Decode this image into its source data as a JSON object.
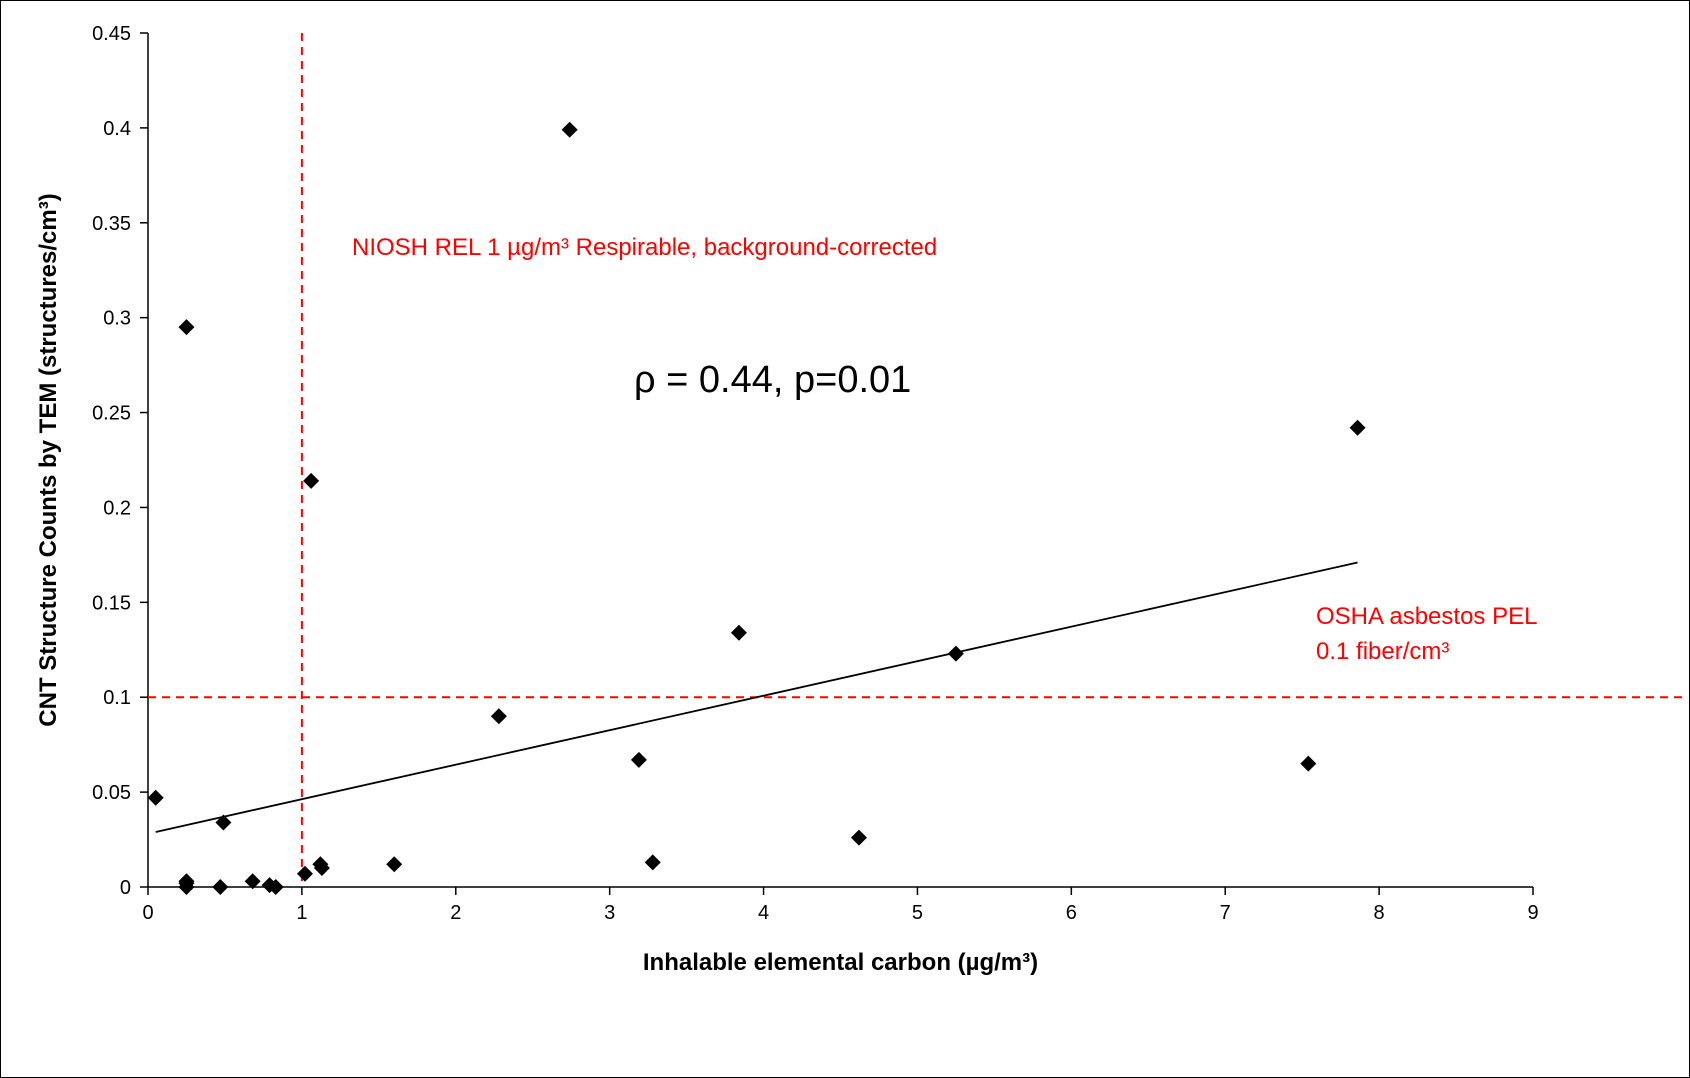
{
  "chart_data": {
    "type": "scatter",
    "xlabel": "Inhalable elemental carbon (µg/m³)",
    "ylabel": "CNT Structure Counts by TEM (structures/cm³)",
    "xlim": [
      0,
      9
    ],
    "ylim": [
      0,
      0.45
    ],
    "x_ticks": [
      "0",
      "1",
      "2",
      "3",
      "4",
      "5",
      "6",
      "7",
      "8",
      "9"
    ],
    "y_ticks": [
      "0",
      "0.05",
      "0.1",
      "0.15",
      "0.2",
      "0.25",
      "0.3",
      "0.35",
      "0.4",
      "0.45"
    ],
    "points": [
      {
        "x": 0.05,
        "y": 0.047
      },
      {
        "x": 0.25,
        "y": 0.295
      },
      {
        "x": 0.25,
        "y": 0.003
      },
      {
        "x": 0.25,
        "y": 0.002
      },
      {
        "x": 0.25,
        "y": 0.0
      },
      {
        "x": 0.47,
        "y": 0.0
      },
      {
        "x": 0.49,
        "y": 0.034
      },
      {
        "x": 0.68,
        "y": 0.003
      },
      {
        "x": 0.79,
        "y": 0.001
      },
      {
        "x": 0.83,
        "y": 0.0
      },
      {
        "x": 1.02,
        "y": 0.007
      },
      {
        "x": 1.06,
        "y": 0.214
      },
      {
        "x": 1.12,
        "y": 0.012
      },
      {
        "x": 1.13,
        "y": 0.01
      },
      {
        "x": 1.6,
        "y": 0.012
      },
      {
        "x": 2.28,
        "y": 0.09
      },
      {
        "x": 2.74,
        "y": 0.399
      },
      {
        "x": 3.19,
        "y": 0.067
      },
      {
        "x": 3.28,
        "y": 0.013
      },
      {
        "x": 3.84,
        "y": 0.134
      },
      {
        "x": 4.62,
        "y": 0.026
      },
      {
        "x": 5.25,
        "y": 0.123
      },
      {
        "x": 7.54,
        "y": 0.065
      },
      {
        "x": 7.86,
        "y": 0.242
      }
    ],
    "trendline": {
      "x": [
        0.05,
        7.86
      ],
      "y": [
        0.029,
        0.171
      ]
    },
    "reference_lines": [
      {
        "orientation": "vertical",
        "value": 1,
        "color": "#ff0000",
        "style": "dashed",
        "label": "NIOSH REL 1 µg/m³  Respirable, background-corrected"
      },
      {
        "orientation": "horizontal",
        "value": 0.1,
        "color": "#ff0000",
        "style": "dashed",
        "label_line1": "OSHA asbestos PEL",
        "label_line2": "0.1 fiber/cm³"
      }
    ],
    "annotation": "ρ = 0.44, p=0.01",
    "marker": "diamond",
    "marker_color": "#000000",
    "grid": false
  }
}
